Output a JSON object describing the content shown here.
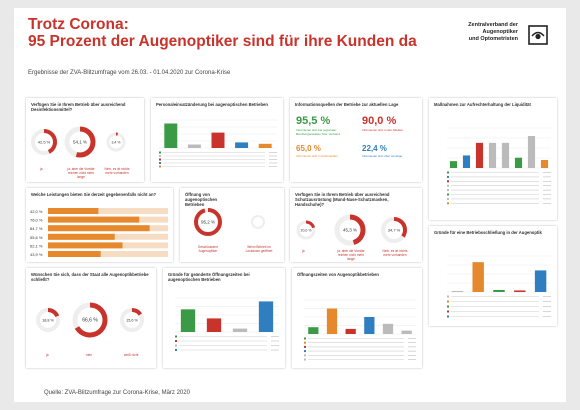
{
  "header": {
    "title_line1": "Trotz Corona:",
    "title_line2": "95 Prozent der Augenoptiker sind für ihre Kunden da",
    "subtitle": "Ergebnisse der ZVA-Blitzumfrage vom 26.03. - 01.04.2020 zur Corona-Krise",
    "org_line1": "Zentralverband der",
    "org_line2": "Augenoptiker",
    "org_line3": "und Optometristen"
  },
  "footer": "Quelle: ZVA-Blitzumfrage zur Corona-Krise, März 2020",
  "colors": {
    "red": "#c8332b",
    "green": "#3a9a45",
    "orange": "#e6892d",
    "blue": "#2f7fc0",
    "grey": "#bbbbbb"
  },
  "cards": {
    "disinfect": {
      "title": "Verfügen Sie in Ihrem Betrieb über ausreichend Desinfektionsmittel?",
      "donuts": [
        "42,5 %",
        "54,1 %",
        "3,4 %"
      ],
      "labels": [
        "ja",
        "ja, aber die Vorräte reichen nicht mehr lange",
        "Nein, es ist nichts mehr vorhanden"
      ]
    },
    "staff": {
      "title": "Personaleinsatzänderung bei augenoptischen Betrieben"
    },
    "info": {
      "title": "Informationsquellen der Betriebe zur aktuellen Lage",
      "v1": "95,5 %",
      "t1": "Informieren sich bei regionaler Berufsorganisation bzw. Verband",
      "v2": "90,0 %",
      "t2": "Informieren sich in den Medien",
      "v3": "65,0 %",
      "t3": "Informieren sich in Fachmedien",
      "v4": "22,4 %",
      "t4": "Informieren sich über sonstige"
    },
    "liquidity": {
      "title": "Maßnahmen zur Aufrechterhaltung der Liquidität"
    },
    "services": {
      "title": "Welche Leistungen bieten Sie derzeit gegebenenfalls nicht an?",
      "rows": [
        "42,0 %",
        "76,0 %",
        "84,7 %",
        "55,6 %",
        "62,1 %",
        "43,9 %"
      ]
    },
    "opening": {
      "title": "Öffnung von augenoptischen Betrieben",
      "donut": "95,2 %",
      "l1": "Geschlossene Augenoptiker",
      "l2": "Wenn Betrieb im Lockdown geöffnet"
    },
    "protection": {
      "title": "Verfügen Sie in Ihrem Betrieb über ausreichend Schutzausrüstung (Mund-Nase-Schutzmasken, Handschuhe)?",
      "donuts": [
        "20,0 %",
        "45,3 %",
        "34,7 %"
      ],
      "labels": [
        "ja",
        "ja, aber die Vorräte reichen nicht mehr lange",
        "Nein, es ist nichts mehr vorhanden"
      ]
    },
    "closure": {
      "title": "Gründe für eine Betriebsschließung in der Augenoptik"
    },
    "state": {
      "title": "Wünschen Sie sich, dass der Staat alle Augenoptikbetriebe schließt?",
      "donuts": [
        "18,8 %",
        "66,6 %",
        "15,6 %"
      ],
      "labels": [
        "ja",
        "nein",
        "weiß nicht"
      ]
    },
    "reasons": {
      "title": "Gründe für geänderte Öffnungszeiten bei augenoptischen Betrieben"
    },
    "hours": {
      "title": "Öffnungszeiten von Augenoptikbetrieben"
    }
  },
  "chart_data": [
    {
      "type": "pie",
      "title": "Verfügen Sie in Ihrem Betrieb über ausreichend Desinfektionsmittel?",
      "categories": [
        "ja",
        "ja, aber die Vorräte reichen nicht mehr lange",
        "Nein, es ist nichts mehr vorhanden"
      ],
      "values": [
        42.5,
        54.1,
        3.4
      ]
    },
    {
      "type": "pie",
      "title": "Verfügen Sie in Ihrem Betrieb über ausreichend Schutzausrüstung (Mund-Nase-Schutzmasken, Handschuhe)?",
      "categories": [
        "ja",
        "ja, aber die Vorräte reichen nicht mehr lange",
        "Nein, es ist nichts mehr vorhanden"
      ],
      "values": [
        20.0,
        45.3,
        34.7
      ]
    },
    {
      "type": "pie",
      "title": "Wünschen Sie sich, dass der Staat alle Augenoptikbetriebe schließt?",
      "categories": [
        "ja",
        "nein",
        "weiß nicht"
      ],
      "values": [
        18.8,
        66.6,
        15.6
      ]
    },
    {
      "type": "pie",
      "title": "Öffnung von augenoptischen Betrieben",
      "values": [
        95.2,
        4.8
      ]
    },
    {
      "type": "bar",
      "title": "Welche Leistungen bieten Sie derzeit gegebenenfalls nicht an?",
      "values": [
        42.0,
        76.0,
        84.7,
        55.6,
        62.1,
        43.9
      ],
      "ylim": [
        0,
        100
      ]
    },
    {
      "type": "bar",
      "title": "Personaleinsatzänderung bei augenoptischen Betrieben",
      "values": [
        35,
        5,
        22,
        8,
        6
      ],
      "ylim": [
        0,
        40
      ]
    },
    {
      "type": "bar",
      "title": "Maßnahmen zur Aufrechterhaltung der Liquidität",
      "values": [
        12,
        22,
        44,
        44,
        44,
        18,
        56,
        14
      ],
      "ylim": [
        0,
        70
      ]
    },
    {
      "type": "bar",
      "title": "Gründe für eine Betriebsschließung in der Augenoptik",
      "values": [
        2,
        58,
        4,
        3,
        42
      ],
      "ylim": [
        0,
        70
      ]
    },
    {
      "type": "bar",
      "title": "Gründe für geänderte Öffnungszeiten bei augenoptischen Betrieben",
      "values": [
        40,
        24,
        6,
        54
      ],
      "ylim": [
        0,
        60
      ]
    },
    {
      "type": "bar",
      "title": "Öffnungszeiten von Augenoptikbetrieben",
      "values": [
        8,
        30,
        6,
        20,
        12,
        4
      ],
      "ylim": [
        0,
        40
      ]
    }
  ]
}
